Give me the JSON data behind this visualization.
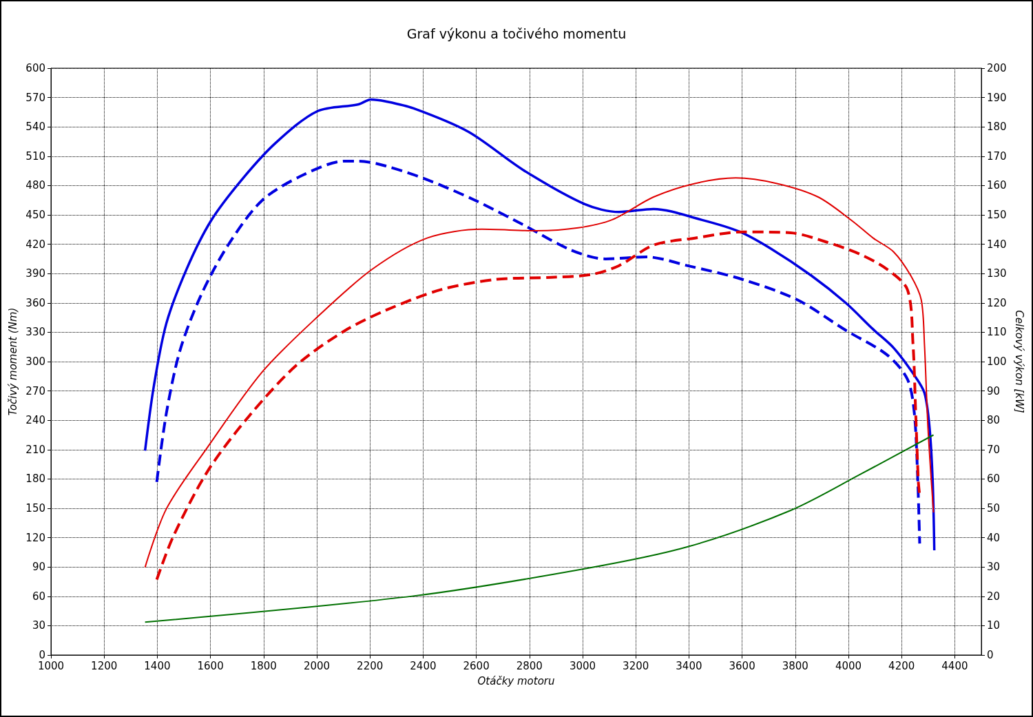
{
  "chart_data": {
    "type": "line",
    "title": "Graf výkonu a točivého momentu",
    "xlabel": "Otáčky motoru",
    "ylabel": "Točivý moment (Nm)",
    "y2label": "Celkový výkon [kW]",
    "xlim": [
      1000,
      4500
    ],
    "xticks": [
      1000,
      1200,
      1400,
      1600,
      1800,
      2000,
      2200,
      2400,
      2600,
      2800,
      3000,
      3200,
      3400,
      3600,
      3800,
      4000,
      4200,
      4400
    ],
    "ylim": [
      0,
      600
    ],
    "yticks": [
      0,
      30,
      60,
      90,
      120,
      150,
      180,
      210,
      240,
      270,
      300,
      330,
      360,
      390,
      420,
      450,
      480,
      510,
      540,
      570,
      600
    ],
    "y2lim": [
      0,
      200
    ],
    "y2ticks": [
      0,
      10,
      20,
      30,
      40,
      50,
      60,
      70,
      80,
      90,
      100,
      110,
      120,
      130,
      140,
      150,
      160,
      170,
      180,
      190,
      200
    ],
    "grid": true,
    "marker": "none",
    "series": [
      {
        "color": "#0000e0",
        "line_style": "solid",
        "x": [
          1354,
          1387,
          1434,
          1511,
          1602,
          1718,
          1847,
          2002,
          2157,
          2203,
          2260,
          2363,
          2570,
          2776,
          3008,
          3137,
          3267,
          3447,
          3589,
          3705,
          3860,
          3990,
          4093,
          4170,
          4248,
          4286,
          4305,
          4317,
          4323
        ],
        "values": [
          209,
          275,
          339,
          395,
          444,
          486,
          524,
          556,
          563,
          568,
          566,
          559,
          535,
          496,
          461,
          453,
          456,
          445,
          433,
          416,
          388,
          360,
          333,
          314,
          286,
          268,
          233,
          177,
          107
        ]
      },
      {
        "color": "#0000e0",
        "line_style": "dashed",
        "x": [
          1398,
          1434,
          1485,
          1563,
          1666,
          1795,
          1950,
          2105,
          2157,
          2260,
          2415,
          2595,
          2776,
          2957,
          3086,
          3241,
          3396,
          3602,
          3809,
          3990,
          4145,
          4222,
          4248,
          4261,
          4268
        ],
        "values": [
          177,
          247,
          311,
          367,
          419,
          465,
          491,
          505,
          505,
          500,
          486,
          465,
          440,
          414,
          405,
          407,
          398,
          384,
          363,
          332,
          307,
          282,
          247,
          177,
          114
        ]
      },
      {
        "color": "#e00000",
        "line_style": "solid",
        "axis": "y2",
        "x": [
          1354,
          1434,
          1589,
          1795,
          2002,
          2209,
          2415,
          2621,
          2828,
          2983,
          3112,
          3267,
          3422,
          3576,
          3731,
          3886,
          4015,
          4093,
          4170,
          4235,
          4274,
          4286,
          4299,
          4320
        ],
        "values": [
          29.9,
          49.8,
          70.8,
          96.5,
          115.2,
          131.5,
          142.1,
          145.1,
          144.6,
          145.6,
          148.4,
          156.1,
          160.7,
          162.6,
          160.7,
          156.1,
          147.9,
          142.1,
          137.4,
          129.2,
          121.0,
          105.8,
          77.8,
          48.6
        ]
      },
      {
        "color": "#e00000",
        "line_style": "dashed",
        "axis": "y2",
        "x": [
          1398,
          1460,
          1589,
          1744,
          1924,
          2105,
          2260,
          2466,
          2673,
          2880,
          3034,
          3137,
          3267,
          3422,
          3602,
          3783,
          3912,
          4041,
          4145,
          4222,
          4243,
          4253,
          4263,
          4268
        ],
        "values": [
          25.7,
          40.4,
          62.6,
          81.3,
          98.8,
          110.5,
          117.5,
          124.5,
          128.0,
          128.7,
          129.7,
          132.7,
          139.7,
          142.1,
          144.2,
          143.9,
          140.9,
          136.7,
          131.5,
          124.5,
          105.8,
          82.5,
          59.1,
          54.4
        ]
      },
      {
        "color": "#007000",
        "line_style": "solid",
        "axis": "y2",
        "x": [
          1354,
          2363,
          3008,
          3396,
          3783,
          4041,
          4320
        ],
        "values": [
          11.2,
          20.1,
          29.4,
          36.9,
          49.3,
          61.4,
          75.0
        ]
      }
    ]
  }
}
